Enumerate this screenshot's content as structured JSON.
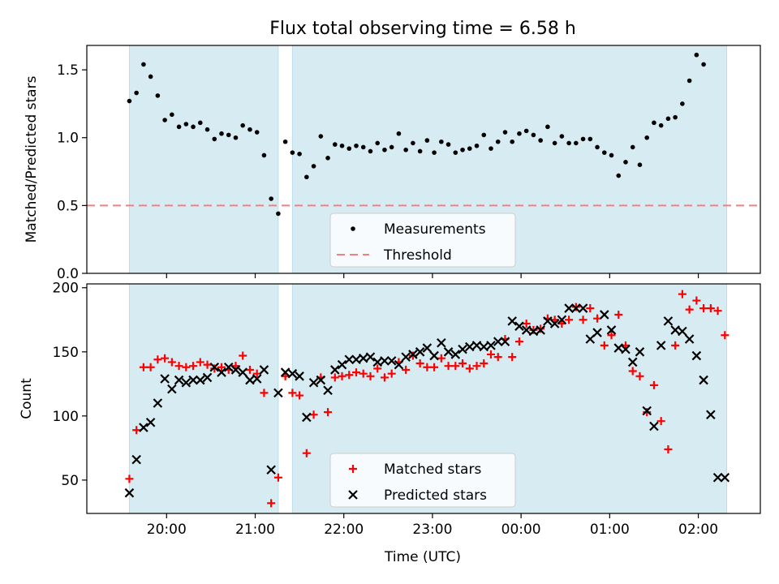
{
  "figure": {
    "title": "Flux total observing time = 6.58 h",
    "xlabel": "Time (UTC)",
    "x_ticks": [
      "20:00",
      "21:00",
      "22:00",
      "23:00",
      "00:00",
      "01:00",
      "02:00"
    ]
  },
  "colors": {
    "measurement": "#000000",
    "threshold": "#f08080",
    "matched": "#ff0000",
    "predicted": "#000000",
    "span_fill": "#add8e6",
    "axes": "#000000"
  },
  "chart_data": [
    {
      "type": "scatter",
      "ylabel": "Matched/Predicted stars",
      "ylim": [
        0,
        1.68
      ],
      "y_ticks": [
        0.0,
        0.5,
        1.0,
        1.5
      ],
      "y_tick_labels": [
        "0.0",
        "0.5",
        "1.0",
        "1.5"
      ],
      "xlim_hours": [
        19.1,
        26.7
      ],
      "spans": [
        [
          19.58,
          21.26
        ],
        [
          21.42,
          26.32
        ]
      ],
      "threshold": 0.5,
      "legend": {
        "position": "lower-center",
        "entries": [
          "Measurements",
          "Threshold"
        ]
      },
      "series": [
        {
          "name": "Measurements",
          "x": [
            19.58,
            19.66,
            19.74,
            19.82,
            19.9,
            19.98,
            20.06,
            20.14,
            20.22,
            20.3,
            20.38,
            20.46,
            20.54,
            20.62,
            20.7,
            20.78,
            20.86,
            20.94,
            21.02,
            21.1,
            21.18,
            21.26,
            21.34,
            21.42,
            21.5,
            21.58,
            21.66,
            21.74,
            21.82,
            21.9,
            21.98,
            22.06,
            22.14,
            22.22,
            22.3,
            22.38,
            22.46,
            22.54,
            22.62,
            22.7,
            22.78,
            22.86,
            22.94,
            23.02,
            23.1,
            23.18,
            23.26,
            23.34,
            23.42,
            23.5,
            23.58,
            23.66,
            23.74,
            23.82,
            23.9,
            23.98,
            24.06,
            24.14,
            24.22,
            24.3,
            24.38,
            24.46,
            24.54,
            24.62,
            24.7,
            24.78,
            24.86,
            24.94,
            25.02,
            25.1,
            25.18,
            25.26,
            25.34,
            25.42,
            25.5,
            25.58,
            25.66,
            25.74,
            25.82,
            25.9,
            25.98,
            26.06,
            26.14,
            26.22,
            26.3
          ],
          "y": [
            1.27,
            1.33,
            1.54,
            1.45,
            1.31,
            1.13,
            1.17,
            1.08,
            1.1,
            1.08,
            1.11,
            1.06,
            0.99,
            1.03,
            1.02,
            1.0,
            1.09,
            1.06,
            1.04,
            0.87,
            0.55,
            0.44,
            0.97,
            0.89,
            0.88,
            0.71,
            0.79,
            1.01,
            0.85,
            0.95,
            0.94,
            0.92,
            0.94,
            0.93,
            0.9,
            0.96,
            0.91,
            0.93,
            1.03,
            0.91,
            0.96,
            0.9,
            0.98,
            0.89,
            0.97,
            0.95,
            0.89,
            0.91,
            0.92,
            0.94,
            1.02,
            0.92,
            0.97,
            1.04,
            0.97,
            1.03,
            1.05,
            1.02,
            0.98,
            1.08,
            0.96,
            1.01,
            0.96,
            0.96,
            0.99,
            0.99,
            0.93,
            0.89,
            0.87,
            0.72,
            0.82,
            0.93,
            0.8,
            1.0,
            1.11,
            1.09,
            1.14,
            1.15,
            1.25,
            1.42,
            1.61,
            1.54,
            null,
            null,
            null
          ]
        }
      ]
    },
    {
      "type": "scatter",
      "ylabel": "Count",
      "ylim": [
        24,
        203
      ],
      "y_ticks": [
        50,
        100,
        150,
        200
      ],
      "y_tick_labels": [
        "50",
        "100",
        "150",
        "200"
      ],
      "xlim_hours": [
        19.1,
        26.7
      ],
      "spans": [
        [
          19.58,
          21.26
        ],
        [
          21.42,
          26.32
        ]
      ],
      "legend": {
        "position": "lower-center",
        "entries": [
          "Matched stars",
          "Predicted stars"
        ]
      },
      "series": [
        {
          "name": "Matched stars",
          "x": [
            19.58,
            19.66,
            19.74,
            19.82,
            19.9,
            19.98,
            20.06,
            20.14,
            20.22,
            20.3,
            20.38,
            20.46,
            20.54,
            20.62,
            20.7,
            20.78,
            20.86,
            20.94,
            21.02,
            21.1,
            21.18,
            21.26,
            21.34,
            21.42,
            21.5,
            21.58,
            21.66,
            21.74,
            21.82,
            21.9,
            21.98,
            22.06,
            22.14,
            22.22,
            22.3,
            22.38,
            22.46,
            22.54,
            22.62,
            22.7,
            22.78,
            22.86,
            22.94,
            23.02,
            23.1,
            23.18,
            23.26,
            23.34,
            23.42,
            23.5,
            23.58,
            23.66,
            23.74,
            23.82,
            23.9,
            23.98,
            24.06,
            24.14,
            24.22,
            24.3,
            24.38,
            24.46,
            24.54,
            24.62,
            24.7,
            24.78,
            24.86,
            24.94,
            25.02,
            25.1,
            25.18,
            25.26,
            25.34,
            25.42,
            25.5,
            25.58,
            25.66,
            25.74,
            25.82,
            25.9,
            25.98,
            26.06,
            26.14,
            26.22,
            26.3
          ],
          "y": [
            51,
            89,
            138,
            138,
            144,
            145,
            142,
            139,
            138,
            139,
            142,
            140,
            137,
            138,
            136,
            139,
            147,
            136,
            133,
            118,
            32,
            52,
            131,
            118,
            116,
            71,
            101,
            130,
            103,
            130,
            131,
            132,
            134,
            133,
            131,
            137,
            130,
            133,
            142,
            136,
            147,
            141,
            138,
            138,
            145,
            139,
            139,
            141,
            137,
            139,
            141,
            148,
            146,
            160,
            146,
            158,
            172,
            167,
            168,
            176,
            175,
            172,
            175,
            185,
            175,
            184,
            176,
            155,
            163,
            179,
            155,
            135,
            131,
            103,
            124,
            96,
            74,
            155,
            195,
            183,
            190,
            184,
            184,
            182,
            163
          ]
        },
        {
          "name": "Predicted stars",
          "x": [
            19.58,
            19.66,
            19.74,
            19.82,
            19.9,
            19.98,
            20.06,
            20.14,
            20.22,
            20.3,
            20.38,
            20.46,
            20.54,
            20.62,
            20.7,
            20.78,
            20.86,
            20.94,
            21.02,
            21.1,
            21.18,
            21.26,
            21.34,
            21.42,
            21.5,
            21.58,
            21.66,
            21.74,
            21.82,
            21.9,
            21.98,
            22.06,
            22.14,
            22.22,
            22.3,
            22.38,
            22.46,
            22.54,
            22.62,
            22.7,
            22.78,
            22.86,
            22.94,
            23.02,
            23.1,
            23.18,
            23.26,
            23.34,
            23.42,
            23.5,
            23.58,
            23.66,
            23.74,
            23.82,
            23.9,
            23.98,
            24.06,
            24.14,
            24.22,
            24.3,
            24.38,
            24.46,
            24.54,
            24.62,
            24.7,
            24.78,
            24.86,
            24.94,
            25.02,
            25.1,
            25.18,
            25.26,
            25.34,
            25.42,
            25.5,
            25.58,
            25.66,
            25.74,
            25.82,
            25.9,
            25.98,
            26.06,
            26.14,
            26.22,
            26.3
          ],
          "y": [
            40,
            66,
            91,
            95,
            110,
            129,
            121,
            128,
            126,
            128,
            128,
            130,
            138,
            134,
            138,
            136,
            134,
            128,
            129,
            136,
            58,
            118,
            134,
            133,
            131,
            99,
            126,
            128,
            120,
            136,
            140,
            144,
            144,
            145,
            146,
            142,
            143,
            143,
            140,
            146,
            148,
            150,
            153,
            147,
            157,
            150,
            148,
            152,
            154,
            155,
            154,
            155,
            158,
            158,
            174,
            170,
            167,
            166,
            167,
            174,
            172,
            175,
            184,
            184,
            184,
            160,
            165,
            179,
            167,
            153,
            152,
            142,
            150,
            104,
            92,
            155,
            174,
            167,
            166,
            160,
            147,
            128,
            101,
            52,
            52
          ]
        }
      ]
    }
  ]
}
